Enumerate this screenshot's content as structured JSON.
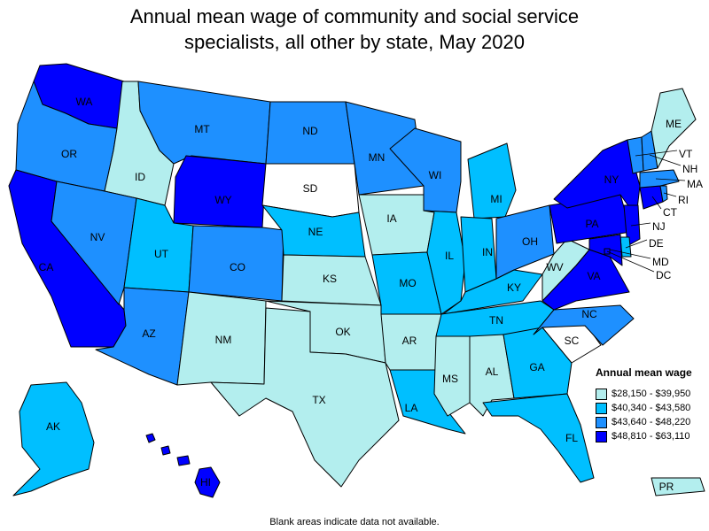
{
  "title_line1": "Annual mean wage of community and social service",
  "title_line2": "specialists, all other by state, May 2020",
  "footnote": "Blank areas indicate data not available.",
  "legend": {
    "title": "Annual mean wage",
    "items": [
      {
        "label": "$28,150 - $39,950",
        "color": "#b3eeee"
      },
      {
        "label": "$40,340 - $43,580",
        "color": "#00bfff"
      },
      {
        "label": "$43,640 - $48,220",
        "color": "#1e90ff"
      },
      {
        "label": "$48,810 - $63,110",
        "color": "#0000ff"
      }
    ]
  },
  "states": [
    {
      "abbr": "WA",
      "tier": 4
    },
    {
      "abbr": "OR",
      "tier": 3
    },
    {
      "abbr": "CA",
      "tier": 4
    },
    {
      "abbr": "ID",
      "tier": 1
    },
    {
      "abbr": "NV",
      "tier": 3
    },
    {
      "abbr": "MT",
      "tier": 3
    },
    {
      "abbr": "WY",
      "tier": 4
    },
    {
      "abbr": "UT",
      "tier": 2
    },
    {
      "abbr": "AZ",
      "tier": 3
    },
    {
      "abbr": "CO",
      "tier": 3
    },
    {
      "abbr": "NM",
      "tier": 1
    },
    {
      "abbr": "ND",
      "tier": 3
    },
    {
      "abbr": "SD",
      "tier": 0
    },
    {
      "abbr": "NE",
      "tier": 2
    },
    {
      "abbr": "KS",
      "tier": 1
    },
    {
      "abbr": "OK",
      "tier": 1
    },
    {
      "abbr": "TX",
      "tier": 1
    },
    {
      "abbr": "MN",
      "tier": 3
    },
    {
      "abbr": "IA",
      "tier": 1
    },
    {
      "abbr": "MO",
      "tier": 2
    },
    {
      "abbr": "AR",
      "tier": 1
    },
    {
      "abbr": "LA",
      "tier": 2
    },
    {
      "abbr": "WI",
      "tier": 3
    },
    {
      "abbr": "IL",
      "tier": 2
    },
    {
      "abbr": "MI",
      "tier": 2
    },
    {
      "abbr": "IN",
      "tier": 2
    },
    {
      "abbr": "OH",
      "tier": 3
    },
    {
      "abbr": "KY",
      "tier": 2
    },
    {
      "abbr": "TN",
      "tier": 2
    },
    {
      "abbr": "MS",
      "tier": 1
    },
    {
      "abbr": "AL",
      "tier": 1
    },
    {
      "abbr": "GA",
      "tier": 2
    },
    {
      "abbr": "FL",
      "tier": 2
    },
    {
      "abbr": "SC",
      "tier": 0
    },
    {
      "abbr": "NC",
      "tier": 3
    },
    {
      "abbr": "VA",
      "tier": 4
    },
    {
      "abbr": "WV",
      "tier": 1
    },
    {
      "abbr": "PA",
      "tier": 4
    },
    {
      "abbr": "NY",
      "tier": 4
    },
    {
      "abbr": "NJ",
      "tier": 4
    },
    {
      "abbr": "DE",
      "tier": 2
    },
    {
      "abbr": "MD",
      "tier": 4
    },
    {
      "abbr": "DC",
      "tier": 4
    },
    {
      "abbr": "CT",
      "tier": 4
    },
    {
      "abbr": "RI",
      "tier": 3
    },
    {
      "abbr": "MA",
      "tier": 3
    },
    {
      "abbr": "VT",
      "tier": 3
    },
    {
      "abbr": "NH",
      "tier": 3
    },
    {
      "abbr": "ME",
      "tier": 1
    },
    {
      "abbr": "AK",
      "tier": 2
    },
    {
      "abbr": "HI",
      "tier": 4
    },
    {
      "abbr": "PR",
      "tier": 1
    }
  ]
}
